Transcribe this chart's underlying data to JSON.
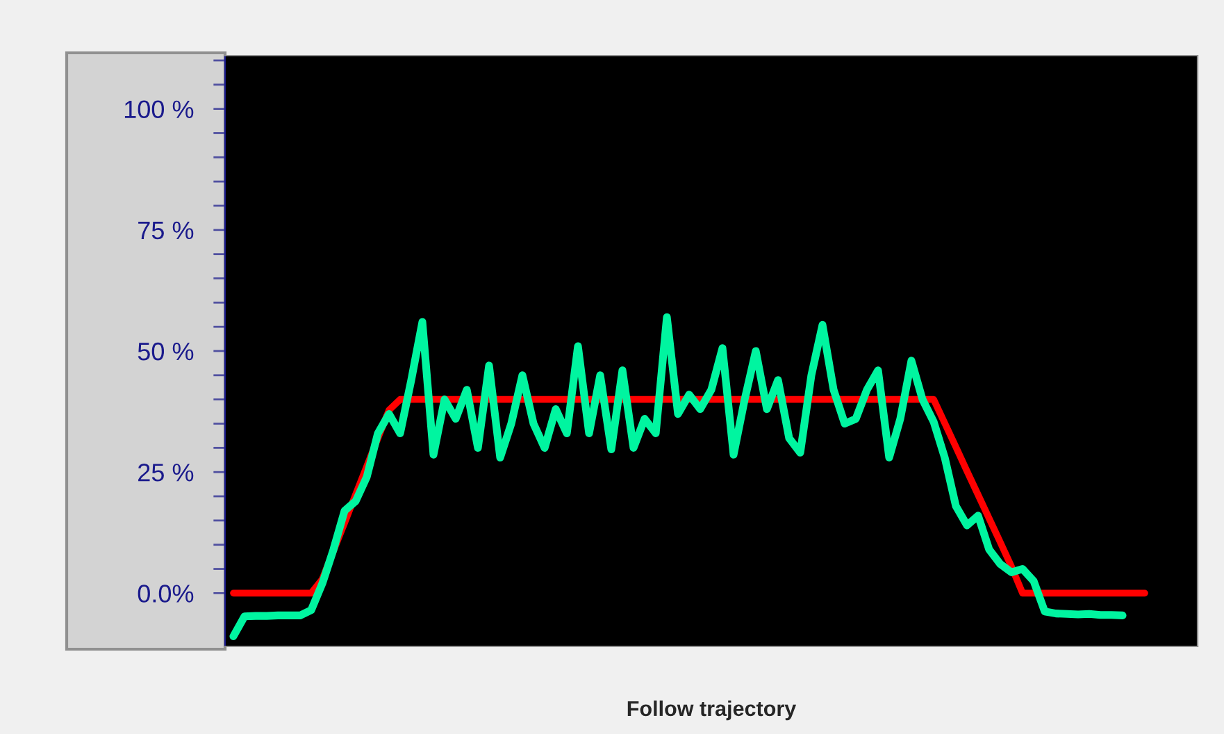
{
  "chart_data": {
    "type": "line",
    "xlabel": "Follow trajectory",
    "categories": [
      null,
      null,
      null,
      null,
      null,
      null,
      null,
      null,
      null,
      null,
      null,
      null,
      null,
      null,
      null,
      null,
      null,
      null,
      null,
      null,
      null,
      null,
      null,
      null,
      null,
      null,
      null,
      null,
      null,
      null,
      null,
      null,
      null,
      null,
      null,
      null,
      null,
      null,
      null,
      null,
      null,
      null,
      null,
      null,
      null,
      null,
      null,
      null,
      null,
      null,
      null,
      null,
      null,
      null,
      null,
      null,
      null,
      null,
      null,
      null,
      null,
      null,
      null,
      null,
      null,
      null,
      null,
      null,
      null,
      null,
      null,
      null,
      null,
      null,
      null,
      null,
      null,
      null,
      null,
      null,
      null,
      null,
      null
    ],
    "ylim": [
      -11,
      111
    ],
    "yticks": [
      {
        "value": 0,
        "label": "0.0%"
      },
      {
        "value": 5,
        "label": null
      },
      {
        "value": 10,
        "label": null
      },
      {
        "value": 15,
        "label": null
      },
      {
        "value": 20,
        "label": null
      },
      {
        "value": 25,
        "label": "25 %"
      },
      {
        "value": 30,
        "label": null
      },
      {
        "value": 35,
        "label": null
      },
      {
        "value": 40,
        "label": null
      },
      {
        "value": 45,
        "label": null
      },
      {
        "value": 50,
        "label": "50 %"
      },
      {
        "value": 55,
        "label": null
      },
      {
        "value": 60,
        "label": null
      },
      {
        "value": 65,
        "label": null
      },
      {
        "value": 70,
        "label": null
      },
      {
        "value": 75,
        "label": "75 %"
      },
      {
        "value": 80,
        "label": null
      },
      {
        "value": 85,
        "label": null
      },
      {
        "value": 90,
        "label": null
      },
      {
        "value": 95,
        "label": null
      },
      {
        "value": 100,
        "label": "100 %"
      },
      {
        "value": 105,
        "label": null
      },
      {
        "value": 110,
        "label": null
      }
    ],
    "tick_labels": "y",
    "line_style": "solid",
    "marker": "none",
    "series": [
      {
        "color": "#ff0000",
        "values": [
          0,
          0,
          0,
          0,
          0,
          0,
          0,
          0,
          2.9,
          8.7,
          14.5,
          20.4,
          26.2,
          32,
          37.8,
          40,
          40,
          40,
          40,
          40,
          40,
          40,
          40,
          40,
          40,
          40,
          40,
          40,
          40,
          40,
          40,
          40,
          40,
          40,
          40,
          40,
          40,
          40,
          40,
          40,
          40,
          40,
          40,
          40,
          40,
          40,
          40,
          40,
          40,
          40,
          40,
          40,
          40,
          40,
          40,
          40,
          40,
          40,
          40,
          40,
          40,
          40,
          40,
          40,
          35.1,
          30.2,
          25.2,
          20.3,
          15.4,
          10.5,
          5.5,
          0,
          0,
          0,
          0,
          0,
          0,
          0,
          0,
          0,
          0,
          0,
          0
        ]
      },
      {
        "color": "#00f5a0",
        "values": [
          -8.9,
          -4.8,
          -4.7,
          -4.7,
          -4.6,
          -4.6,
          -4.6,
          -3.5,
          2,
          9,
          17,
          19,
          24,
          33,
          37,
          33,
          44,
          56,
          28.6,
          40,
          36,
          42,
          30,
          47,
          28,
          35,
          45,
          35,
          30,
          38,
          33,
          51,
          33,
          45,
          29.7,
          46,
          30,
          36,
          33,
          57,
          37,
          41,
          38,
          42,
          50.6,
          28.6,
          40,
          50,
          38,
          44,
          32,
          29,
          45,
          55.4,
          42,
          35,
          36,
          42,
          46,
          28,
          36,
          48,
          40,
          35.4,
          28,
          18,
          14,
          16,
          9,
          6,
          4.3,
          5,
          2.5,
          -3.8,
          -4.2,
          -4.3,
          -4.4,
          -4.3,
          -4.5,
          -4.5,
          -4.6,
          null,
          null
        ]
      }
    ]
  }
}
